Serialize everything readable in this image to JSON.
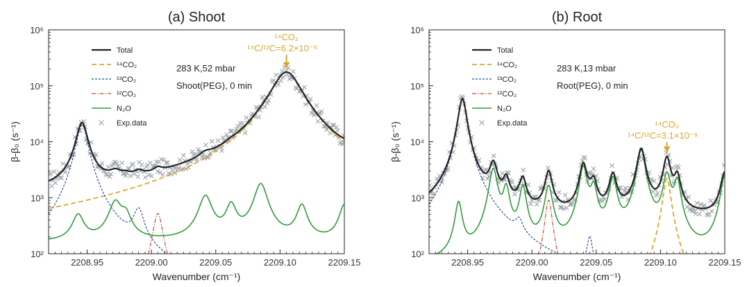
{
  "chart_data": [
    {
      "type": "line",
      "title": "(a) Shoot",
      "xlabel": "Wavenumber (cm⁻¹)",
      "ylabel": "β-β₀ (s⁻¹)",
      "yscale": "log",
      "xlim": [
        2208.92,
        2209.15
      ],
      "ylim": [
        100,
        1000000
      ],
      "xticks": [
        "2208.95",
        "2209.00",
        "2209.05",
        "2209.10",
        "2209.15"
      ],
      "yticks": [
        "10²",
        "10³",
        "10⁴",
        "10⁵",
        "10⁶"
      ],
      "legend": {
        "placement": "top-left",
        "entries": [
          "Total",
          "¹⁴CO₂",
          "¹³CO₂",
          "¹²CO₂",
          "N₂O",
          "Exp.data"
        ]
      },
      "conditions": [
        "283 K,52 mbar",
        "Shoot(PEG), 0 min"
      ],
      "annotation": {
        "lines": [
          "¹⁴CO₂",
          "¹⁴C/¹²C=6.2×10⁻⁶"
        ],
        "x": 2209.105
      },
      "baseline": 650,
      "series": [
        {
          "name": "¹⁴CO₂",
          "peaks": [
            {
              "x": 2209.105,
              "height": 175000,
              "width": 0.011
            }
          ],
          "floor": 30
        },
        {
          "name": "¹³CO₂",
          "peaks": [
            {
              "x": 2208.946,
              "height": 20000,
              "width": 0.0042
            },
            {
              "x": 2208.99,
              "height": 480,
              "width": 0.004
            }
          ],
          "floor": 5
        },
        {
          "name": "¹²CO₂",
          "peaks": [
            {
              "x": 2209.005,
              "height": 520,
              "width": 0.0035
            }
          ],
          "floor": 5
        },
        {
          "name": "N₂O",
          "peaks": [
            {
              "x": 2208.943,
              "height": 330,
              "width": 0.0045
            },
            {
              "x": 2208.972,
              "height": 680,
              "width": 0.005
            },
            {
              "x": 2208.98,
              "height": 300,
              "width": 0.004
            },
            {
              "x": 2209.042,
              "height": 900,
              "width": 0.005
            },
            {
              "x": 2209.062,
              "height": 560,
              "width": 0.004
            },
            {
              "x": 2209.085,
              "height": 1600,
              "width": 0.005
            },
            {
              "x": 2209.117,
              "height": 560,
              "width": 0.004
            },
            {
              "x": 2209.15,
              "height": 580,
              "width": 0.004
            }
          ],
          "floor": 160
        }
      ]
    },
    {
      "type": "line",
      "title": "(b) Root",
      "xlabel": "Wavenumber (cm⁻¹)",
      "ylabel": "β-β₀ (s⁻¹)",
      "yscale": "log",
      "xlim": [
        2208.92,
        2209.15
      ],
      "ylim": [
        100,
        1000000
      ],
      "xticks": [
        "2208.95",
        "2209.00",
        "2209.05",
        "2209.10",
        "2209.15"
      ],
      "yticks": [
        "10²",
        "10³",
        "10⁴",
        "10⁵",
        "10⁶"
      ],
      "legend": {
        "placement": "top-left",
        "entries": [
          "Total",
          "¹⁴CO₂",
          "¹³CO₂",
          "¹²CO₂",
          "N₂O",
          "Exp.data"
        ]
      },
      "conditions": [
        "283 K,13 mbar",
        "Root(PEG), 0 min"
      ],
      "annotation": {
        "lines": [
          "¹⁴CO₂",
          "¹⁴C/¹²C=3.1×10⁻⁸"
        ],
        "x": 2209.105
      },
      "baseline": 380,
      "series": [
        {
          "name": "¹⁴CO₂",
          "peaks": [
            {
              "x": 2209.105,
              "height": 2200,
              "width": 0.0028
            }
          ],
          "floor": 1
        },
        {
          "name": "¹³CO₂",
          "peaks": [
            {
              "x": 2208.946,
              "height": 58000,
              "width": 0.003
            },
            {
              "x": 2208.99,
              "height": 180,
              "width": 0.003
            },
            {
              "x": 2209.045,
              "height": 150,
              "width": 0.002
            }
          ],
          "floor": 3
        },
        {
          "name": "¹²CO₂",
          "peaks": [
            {
              "x": 2209.013,
              "height": 900,
              "width": 0.0025
            }
          ],
          "floor": 3
        },
        {
          "name": "N₂O",
          "peaks": [
            {
              "x": 2208.943,
              "height": 750,
              "width": 0.0025
            },
            {
              "x": 2208.97,
              "height": 3200,
              "width": 0.003
            },
            {
              "x": 2208.98,
              "height": 1400,
              "width": 0.0025
            },
            {
              "x": 2208.993,
              "height": 1500,
              "width": 0.0025
            },
            {
              "x": 2209.013,
              "height": 1500,
              "width": 0.0028
            },
            {
              "x": 2209.04,
              "height": 3500,
              "width": 0.0028
            },
            {
              "x": 2209.048,
              "height": 1400,
              "width": 0.0025
            },
            {
              "x": 2209.063,
              "height": 2100,
              "width": 0.0028
            },
            {
              "x": 2209.085,
              "height": 7000,
              "width": 0.003
            },
            {
              "x": 2209.105,
              "height": 2500,
              "width": 0.0028
            },
            {
              "x": 2209.113,
              "height": 1900,
              "width": 0.0025
            },
            {
              "x": 2209.15,
              "height": 2400,
              "width": 0.003
            }
          ],
          "floor": 55
        }
      ]
    }
  ],
  "colors": {
    "total": "#222222",
    "c14": "#e0a431",
    "c13": "#2d4a9e",
    "c12": "#c04a3c",
    "n2o": "#2f9a3a",
    "exp": "#9aa2a8",
    "annotation": "#d9a531"
  }
}
